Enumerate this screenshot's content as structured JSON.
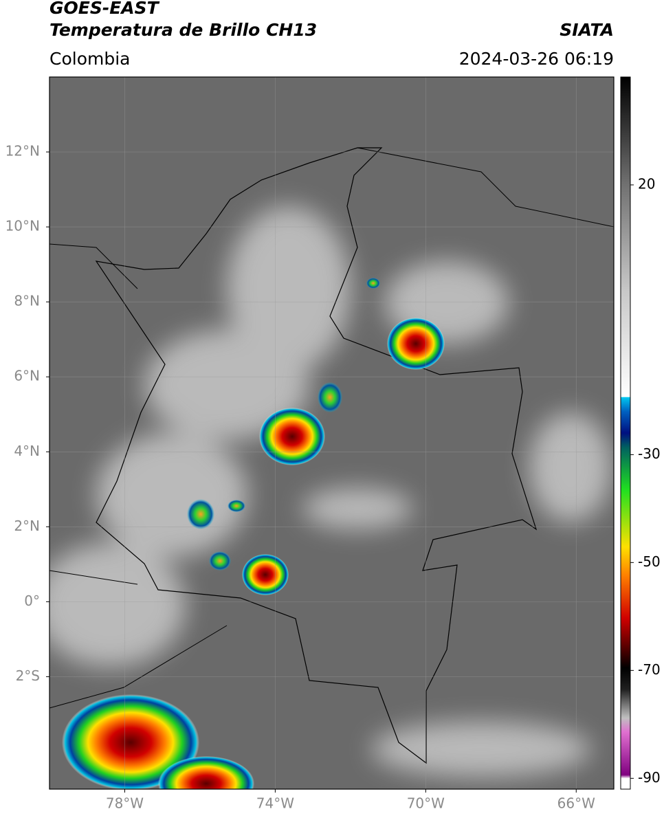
{
  "map": {
    "title": "GOES-EAST",
    "subtitle": "Temperatura de Brillo CH13",
    "source": "SIATA",
    "region": "Colombia",
    "datetime": "2024-03-26 06:19",
    "xlim": [
      -80,
      -65
    ],
    "ylim": [
      -5,
      14
    ],
    "xticks": [
      {
        "value": -78,
        "label": "78°W"
      },
      {
        "value": -74,
        "label": "74°W"
      },
      {
        "value": -70,
        "label": "70°W"
      },
      {
        "value": -66,
        "label": "66°W"
      }
    ],
    "yticks": [
      {
        "value": 12,
        "label": "12°N"
      },
      {
        "value": 10,
        "label": "10°N"
      },
      {
        "value": 8,
        "label": "8°N"
      },
      {
        "value": 6,
        "label": "6°N"
      },
      {
        "value": 4,
        "label": "4°N"
      },
      {
        "value": 2,
        "label": "2°N"
      },
      {
        "value": 0,
        "label": "0°"
      },
      {
        "value": -2,
        "label": "2°S"
      }
    ],
    "grid": true,
    "colorbar": {
      "lim": [
        -92,
        40
      ],
      "ticks": [
        20,
        -30,
        -50,
        -70,
        -90
      ]
    }
  }
}
